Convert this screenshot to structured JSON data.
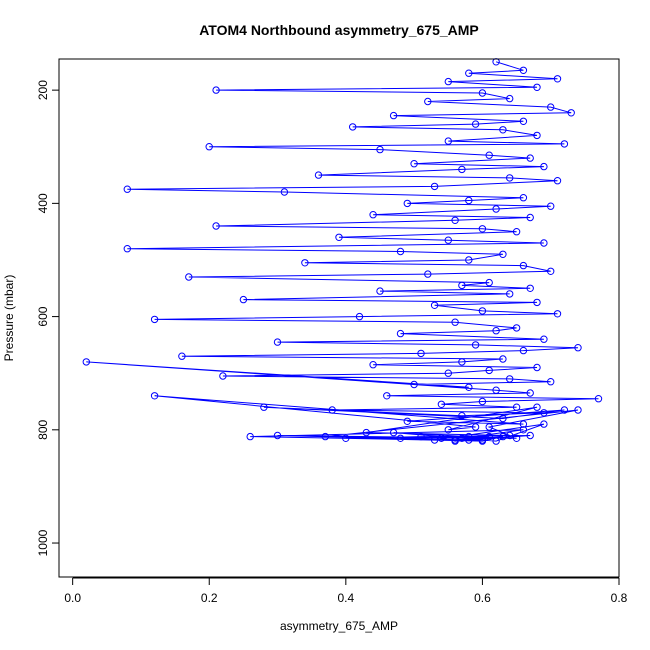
{
  "chart_data": {
    "type": "scatter",
    "title": "ATOM4 Northbound asymmetry_675_AMP",
    "xlabel": "asymmetry_675_AMP",
    "ylabel": "Pressure (mbar)",
    "xlim": [
      -0.02,
      0.8
    ],
    "ylim": [
      1060,
      145
    ],
    "y_reversed": true,
    "x_ticks": [
      0.0,
      0.2,
      0.4,
      0.6,
      0.8
    ],
    "x_tick_labels": [
      "0.0",
      "0.2",
      "0.4",
      "0.6",
      "0.8"
    ],
    "y_ticks": [
      200,
      400,
      600,
      800,
      1000
    ],
    "y_tick_labels": [
      "200",
      "400",
      "600",
      "800",
      "1000"
    ],
    "grid": false,
    "marker": "open-circle",
    "connected": true,
    "series": [
      {
        "color": "#0000ff",
        "x": [
          0.62,
          0.66,
          0.58,
          0.71,
          0.55,
          0.68,
          0.21,
          0.6,
          0.64,
          0.52,
          0.7,
          0.73,
          0.47,
          0.66,
          0.59,
          0.41,
          0.63,
          0.68,
          0.55,
          0.72,
          0.2,
          0.45,
          0.61,
          0.67,
          0.5,
          0.69,
          0.57,
          0.36,
          0.64,
          0.71,
          0.53,
          0.08,
          0.31,
          0.66,
          0.58,
          0.49,
          0.7,
          0.62,
          0.44,
          0.67,
          0.56,
          0.21,
          0.6,
          0.65,
          0.39,
          0.55,
          0.69,
          0.08,
          0.48,
          0.63,
          0.58,
          0.34,
          0.66,
          0.7,
          0.52,
          0.17,
          0.61,
          0.57,
          0.67,
          0.45,
          0.64,
          0.25,
          0.68,
          0.53,
          0.6,
          0.71,
          0.42,
          0.12,
          0.56,
          0.65,
          0.62,
          0.48,
          0.69,
          0.3,
          0.59,
          0.74,
          0.66,
          0.51,
          0.16,
          0.63,
          0.57,
          0.44,
          0.68,
          0.61,
          0.55,
          0.22,
          0.64,
          0.7,
          0.5,
          0.58,
          0.02,
          0.62,
          0.67,
          0.46,
          0.77,
          0.6,
          0.54,
          0.65,
          0.38,
          0.69,
          0.57,
          0.28,
          0.63,
          0.72,
          0.49,
          0.66,
          0.12,
          0.59,
          0.55,
          0.68,
          0.43,
          0.64,
          0.61,
          0.74,
          0.37,
          0.57,
          0.66,
          0.26,
          0.53,
          0.69,
          0.62,
          0.47,
          0.58,
          0.65,
          0.3,
          0.56,
          0.63,
          0.6,
          0.4,
          0.51,
          0.67,
          0.58,
          0.48,
          0.61,
          0.54,
          0.56,
          0.6
        ],
        "y": [
          150,
          165,
          170,
          180,
          185,
          195,
          200,
          205,
          215,
          220,
          230,
          240,
          245,
          255,
          260,
          265,
          270,
          280,
          290,
          295,
          300,
          305,
          315,
          320,
          330,
          335,
          340,
          350,
          355,
          360,
          370,
          375,
          380,
          390,
          395,
          400,
          405,
          410,
          420,
          425,
          430,
          440,
          445,
          450,
          460,
          465,
          470,
          480,
          485,
          490,
          500,
          505,
          510,
          520,
          525,
          530,
          540,
          545,
          550,
          555,
          560,
          570,
          575,
          580,
          590,
          595,
          600,
          605,
          610,
          620,
          625,
          630,
          640,
          645,
          650,
          655,
          660,
          665,
          670,
          675,
          680,
          685,
          690,
          695,
          700,
          705,
          710,
          715,
          720,
          725,
          680,
          730,
          735,
          740,
          745,
          750,
          755,
          760,
          765,
          770,
          775,
          760,
          780,
          765,
          785,
          790,
          740,
          795,
          800,
          760,
          805,
          810,
          795,
          765,
          812,
          815,
          800,
          812,
          818,
          790,
          820,
          805,
          812,
          815,
          810,
          818,
          812,
          820,
          815,
          812,
          810,
          818,
          815,
          812,
          815,
          820,
          818
        ]
      }
    ]
  }
}
